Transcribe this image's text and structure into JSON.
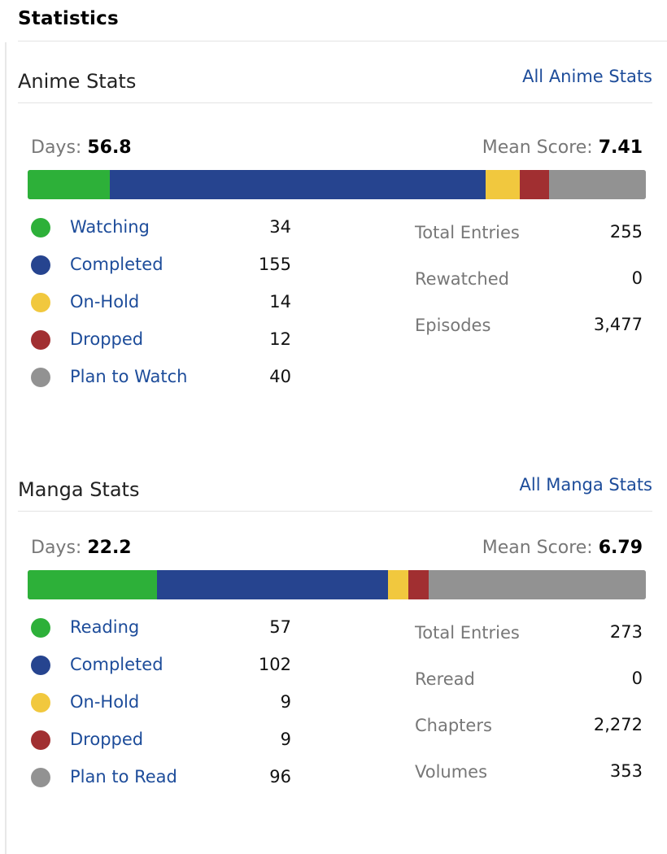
{
  "page_title": "Statistics",
  "anime": {
    "title": "Anime Stats",
    "link": "All Anime Stats",
    "days_label": "Days:",
    "days": "56.8",
    "mean_label": "Mean Score:",
    "mean": "7.41",
    "statuses": [
      {
        "label": "Watching",
        "count": "34",
        "value": 34,
        "color": "#2db039"
      },
      {
        "label": "Completed",
        "count": "155",
        "value": 155,
        "color": "#26448f"
      },
      {
        "label": "On-Hold",
        "count": "14",
        "value": 14,
        "color": "#f1c83e"
      },
      {
        "label": "Dropped",
        "count": "12",
        "value": 12,
        "color": "#a12f31"
      },
      {
        "label": "Plan to Watch",
        "count": "40",
        "value": 40,
        "color": "#929292"
      }
    ],
    "totals": [
      {
        "label": "Total Entries",
        "value": "255"
      },
      {
        "label": "Rewatched",
        "value": "0"
      },
      {
        "label": "Episodes",
        "value": "3,477"
      }
    ]
  },
  "manga": {
    "title": "Manga Stats",
    "link": "All Manga Stats",
    "days_label": "Days:",
    "days": "22.2",
    "mean_label": "Mean Score:",
    "mean": "6.79",
    "statuses": [
      {
        "label": "Reading",
        "count": "57",
        "value": 57,
        "color": "#2db039"
      },
      {
        "label": "Completed",
        "count": "102",
        "value": 102,
        "color": "#26448f"
      },
      {
        "label": "On-Hold",
        "count": "9",
        "value": 9,
        "color": "#f1c83e"
      },
      {
        "label": "Dropped",
        "count": "9",
        "value": 9,
        "color": "#a12f31"
      },
      {
        "label": "Plan to Read",
        "count": "96",
        "value": 96,
        "color": "#929292"
      }
    ],
    "totals": [
      {
        "label": "Total Entries",
        "value": "273"
      },
      {
        "label": "Reread",
        "value": "0"
      },
      {
        "label": "Chapters",
        "value": "2,272"
      },
      {
        "label": "Volumes",
        "value": "353"
      }
    ]
  }
}
